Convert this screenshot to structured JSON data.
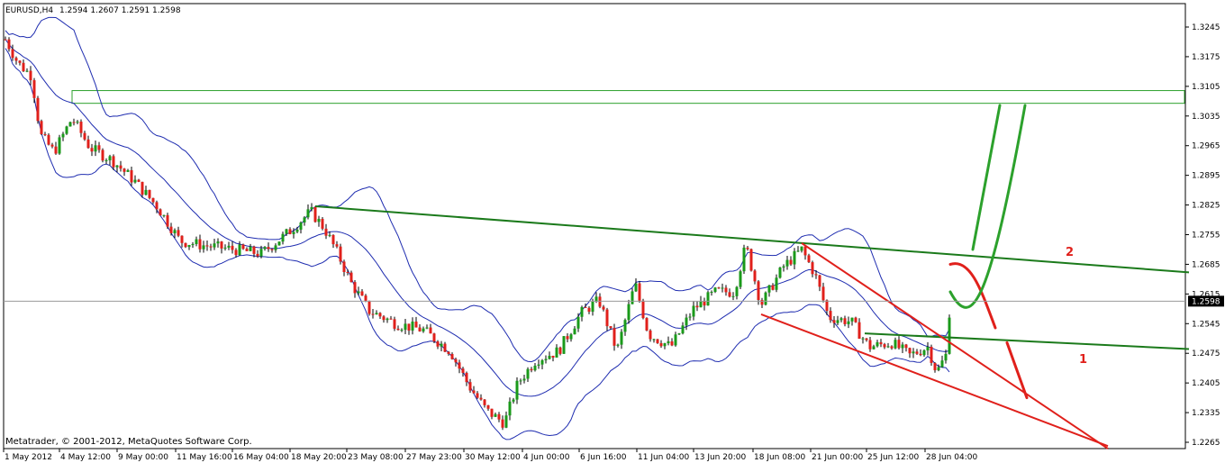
{
  "chart_data": {
    "type": "candlestick",
    "title": "EURUSD,H4",
    "ohlc_header": "1.2594 1.2607 1.2591 1.2598",
    "footer": "Metatrader, © 2001-2012, MetaQuotes Software Corp.",
    "current_price": "1.2598",
    "ylim": [
      1.2265,
      1.3278
    ],
    "y_ticks": [
      "1.3245",
      "1.3175",
      "1.3105",
      "1.3035",
      "1.2965",
      "1.2895",
      "1.2825",
      "1.2755",
      "1.2685",
      "1.2615",
      "1.2545",
      "1.2475",
      "1.2405",
      "1.2335",
      "1.2265"
    ],
    "x_ticks": [
      "1 May 2012",
      "4 May 12:00",
      "9 May 00:00",
      "11 May 16:00",
      "16 May 04:00",
      "18 May 20:00",
      "23 May 08:00",
      "27 May 23:00",
      "30 May 12:00",
      "4 Jun 00:00",
      "6 Jun 16:00",
      "11 Jun 04:00",
      "13 Jun 20:00",
      "18 Jun 08:00",
      "21 Jun 00:00",
      "25 Jun 12:00",
      "28 Jun 04:00"
    ],
    "x_anchors": [
      {
        "time": 0,
        "price": 1.324
      },
      {
        "time": 20,
        "price": 1.316
      },
      {
        "time": 35,
        "price": 1.313
      },
      {
        "time": 45,
        "price": 1.299
      },
      {
        "time": 60,
        "price": 1.295
      },
      {
        "time": 80,
        "price": 1.303
      },
      {
        "time": 100,
        "price": 1.296
      },
      {
        "time": 125,
        "price": 1.293
      },
      {
        "time": 150,
        "price": 1.288
      },
      {
        "time": 175,
        "price": 1.282
      },
      {
        "time": 200,
        "price": 1.274
      },
      {
        "time": 225,
        "price": 1.273
      },
      {
        "time": 260,
        "price": 1.272
      },
      {
        "time": 290,
        "price": 1.271
      },
      {
        "time": 320,
        "price": 1.276
      },
      {
        "time": 345,
        "price": 1.281
      },
      {
        "time": 360,
        "price": 1.277
      },
      {
        "time": 375,
        "price": 1.271
      },
      {
        "time": 390,
        "price": 1.264
      },
      {
        "time": 410,
        "price": 1.2575
      },
      {
        "time": 440,
        "price": 1.2545
      },
      {
        "time": 470,
        "price": 1.253
      },
      {
        "time": 500,
        "price": 1.248
      },
      {
        "time": 520,
        "price": 1.24
      },
      {
        "time": 540,
        "price": 1.234
      },
      {
        "time": 560,
        "price": 1.231
      },
      {
        "time": 575,
        "price": 1.2405
      },
      {
        "time": 595,
        "price": 1.246
      },
      {
        "time": 620,
        "price": 1.248
      },
      {
        "time": 645,
        "price": 1.257
      },
      {
        "time": 665,
        "price": 1.26
      },
      {
        "time": 685,
        "price": 1.248
      },
      {
        "time": 705,
        "price": 1.264
      },
      {
        "time": 720,
        "price": 1.252
      },
      {
        "time": 745,
        "price": 1.249
      },
      {
        "time": 770,
        "price": 1.258
      },
      {
        "time": 795,
        "price": 1.262
      },
      {
        "time": 815,
        "price": 1.262
      },
      {
        "time": 828,
        "price": 1.273
      },
      {
        "time": 845,
        "price": 1.259
      },
      {
        "time": 870,
        "price": 1.268
      },
      {
        "time": 890,
        "price": 1.272
      },
      {
        "time": 905,
        "price": 1.266
      },
      {
        "time": 920,
        "price": 1.256
      },
      {
        "time": 945,
        "price": 1.255
      },
      {
        "time": 965,
        "price": 1.249
      },
      {
        "time": 990,
        "price": 1.25
      },
      {
        "time": 1010,
        "price": 1.247
      },
      {
        "time": 1030,
        "price": 1.249
      },
      {
        "time": 1040,
        "price": 1.243
      },
      {
        "time": 1050,
        "price": 1.247
      },
      {
        "time": 1055,
        "price": 1.2598
      }
    ],
    "bollinger_width": 0.006,
    "resistance_zone": {
      "from": 1.3095,
      "to": 1.3065
    },
    "trendlines": [
      {
        "color": "#1b7a1b",
        "points": [
          [
            350,
            1.2822
          ],
          [
            1320,
            1.2666
          ]
        ]
      },
      {
        "color": "#1b7a1b",
        "points": [
          [
            960,
            1.2522
          ],
          [
            1320,
            1.2485
          ]
        ]
      },
      {
        "color": "#e0201b",
        "points": [
          [
            890,
            1.2735
          ],
          [
            1230,
            1.225
          ]
        ]
      },
      {
        "color": "#e0201b",
        "points": [
          [
            845,
            1.2567
          ],
          [
            1230,
            1.2256
          ]
        ]
      }
    ],
    "scenarios": [
      {
        "label": "2",
        "color": "#e0201b"
      },
      {
        "label": "1",
        "color": "#e0201b"
      }
    ],
    "scenario_paths": [
      {
        "color": "#e0201b",
        "points": [
          [
            1055,
            1.2685
          ],
          [
            1078,
            1.27
          ],
          [
            1090,
            1.262
          ],
          [
            1105,
            1.2535
          ]
        ]
      },
      {
        "color": "#e0201b",
        "points": [
          [
            1118,
            1.25
          ],
          [
            1140,
            1.237
          ]
        ]
      },
      {
        "color": "#2ca12c",
        "points": [
          [
            1055,
            1.262
          ],
          [
            1080,
            1.252
          ],
          [
            1100,
            1.261
          ],
          [
            1138,
            1.306
          ]
        ]
      },
      {
        "color": "#2ca12c",
        "points": [
          [
            1080,
            1.272
          ],
          [
            1110,
            1.306
          ]
        ]
      }
    ]
  }
}
